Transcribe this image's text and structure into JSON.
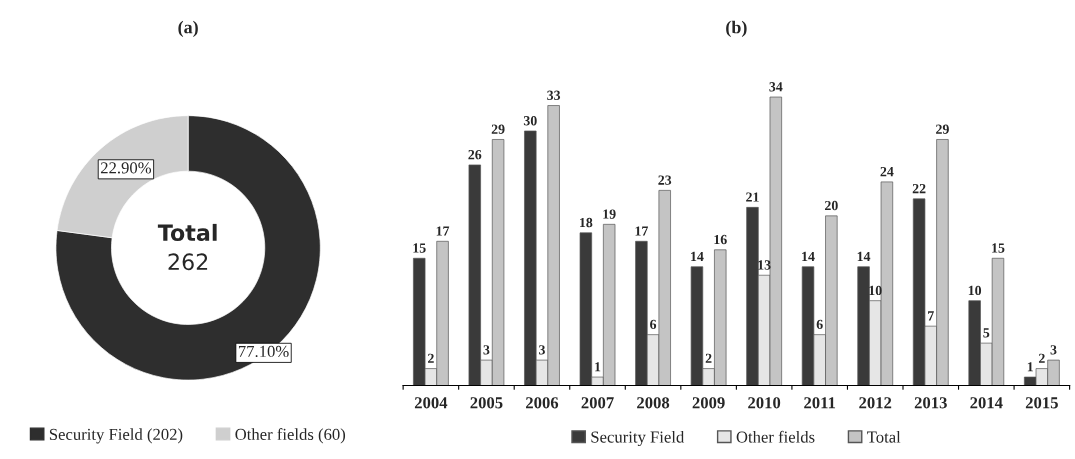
{
  "chart_data": [
    {
      "type": "donut",
      "title": "(a)",
      "categories": [
        "Security Field (202)",
        "Other fields (60)"
      ],
      "values": [
        77.1,
        22.9
      ],
      "colors": [
        "#2e2e2e",
        "#cfcfcf"
      ],
      "value_labels": [
        "77.10%",
        "22.90%"
      ],
      "annotations": [
        "Total",
        "262"
      ],
      "legend": "bottom"
    },
    {
      "type": "bar",
      "title": "(b)",
      "categories": [
        "2004",
        "2005",
        "2006",
        "2007",
        "2008",
        "2009",
        "2010",
        "2011",
        "2012",
        "2013",
        "2014",
        "2015"
      ],
      "series": [
        {
          "name": "Security Field",
          "color": "#3a3a3a",
          "values": [
            15,
            26,
            30,
            18,
            17,
            14,
            21,
            14,
            14,
            22,
            10,
            1
          ]
        },
        {
          "name": "Other fields",
          "color": "#e6e6e6",
          "values": [
            2,
            3,
            3,
            1,
            6,
            2,
            13,
            6,
            10,
            7,
            5,
            2
          ]
        },
        {
          "name": "Total",
          "color": "#c4c4c4",
          "values": [
            17,
            29,
            33,
            19,
            23,
            16,
            34,
            20,
            24,
            29,
            15,
            3
          ]
        }
      ],
      "data_labels": true,
      "tick_labels": "x",
      "grid": false,
      "legend": "bottom"
    }
  ]
}
